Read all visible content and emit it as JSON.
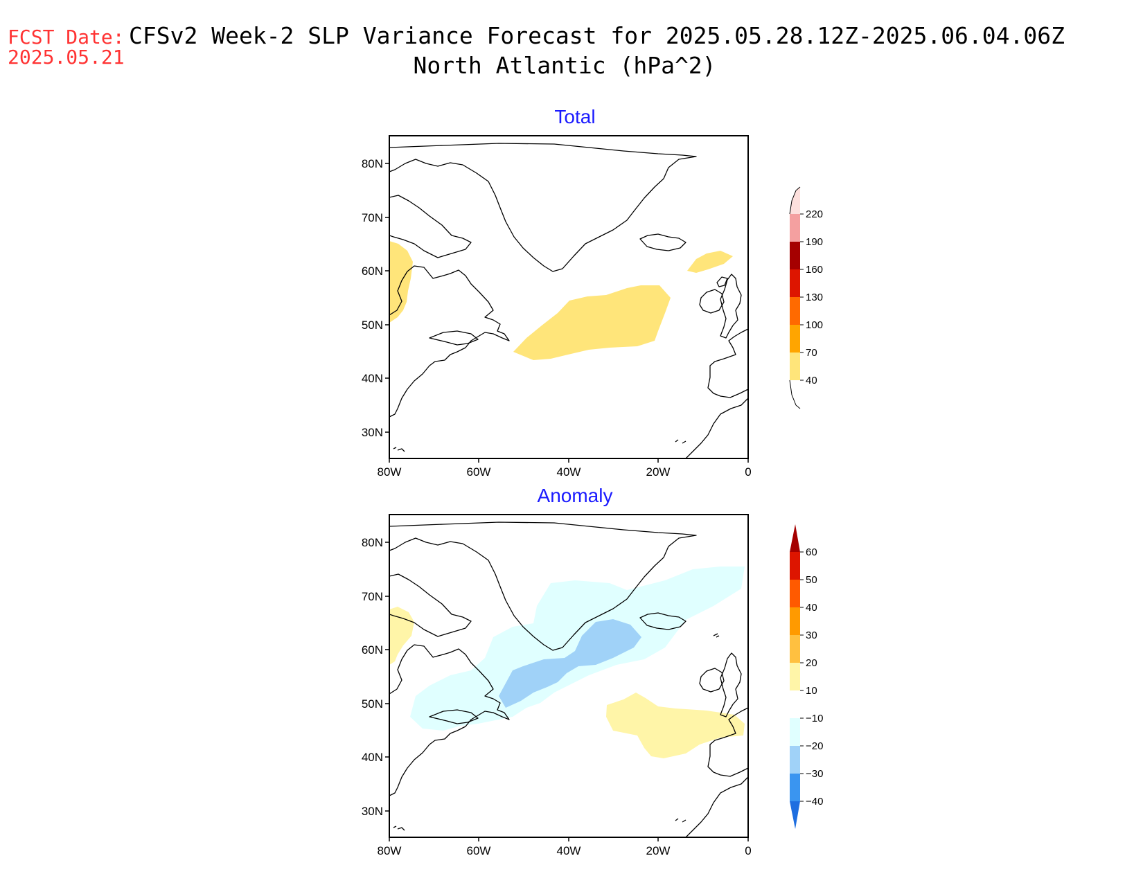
{
  "header": {
    "fcst_label": "FCST Date:",
    "fcst_date": "2025.05.21",
    "title_line1": "CFSv2 Week-2 SLP Variance Forecast for 2025.05.28.12Z-2025.06.04.06Z",
    "title_line2": "North Atlantic (hPa^2)"
  },
  "colors": {
    "header_red": "#ff3333",
    "panel_title_blue": "#1a1aff",
    "coast": "#000000"
  },
  "panels": [
    {
      "title": "Total",
      "lat_labels": [
        "80N",
        "70N",
        "60N",
        "50N",
        "40N",
        "30N"
      ],
      "lon_labels": [
        "80W",
        "60W",
        "40W",
        "20W",
        "0"
      ],
      "colorbar": {
        "levels": [
          "40",
          "70",
          "100",
          "130",
          "160",
          "190",
          "220"
        ],
        "colors": [
          "#ffe57a",
          "#ffa500",
          "#ff6a00",
          "#ff3a00",
          "#dd1500",
          "#a50000",
          "#f4a0a0",
          "#fde0dd"
        ]
      }
    },
    {
      "title": "Anomaly",
      "lat_labels": [
        "80N",
        "70N",
        "60N",
        "50N",
        "40N",
        "30N"
      ],
      "lon_labels": [
        "80W",
        "60W",
        "40W",
        "20W",
        "0"
      ],
      "colorbar": {
        "levels": [
          "60",
          "50",
          "40",
          "30",
          "20",
          "10",
          "−10",
          "−20",
          "−30",
          "−40"
        ],
        "colors": [
          "#a50000",
          "#dd1500",
          "#ff5a00",
          "#ff9a00",
          "#ffc040",
          "#fff5a8",
          "#ffffff",
          "#e0ffff",
          "#a0d2f8",
          "#3a95f0",
          "#1e6ee0"
        ]
      }
    }
  ]
}
